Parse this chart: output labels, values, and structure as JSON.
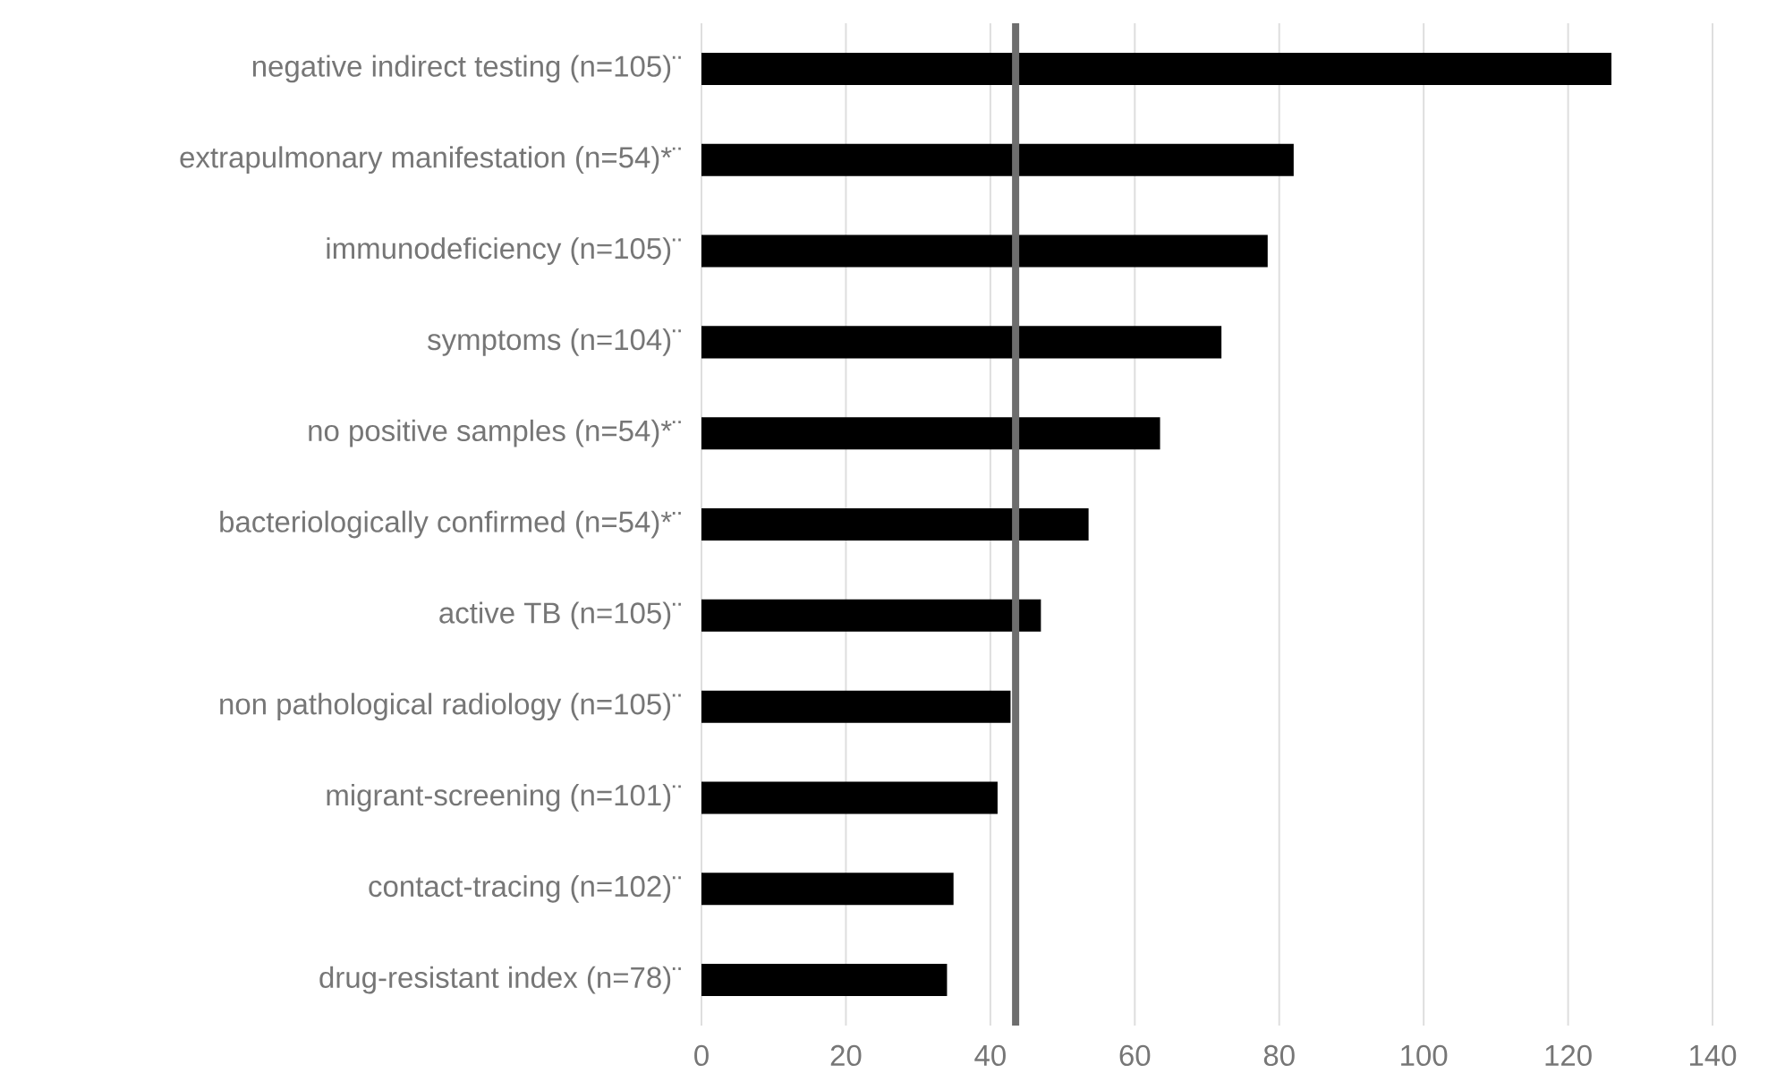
{
  "chart_data": {
    "type": "bar",
    "orientation": "horizontal",
    "categories": [
      "negative indirect testing (n=105)¨",
      "extrapulmonary manifestation (n=54)*¨",
      "immunodeficiency (n=105)¨",
      "symptoms (n=104)¨",
      "no positive samples (n=54)*¨",
      "bacteriologically confirmed (n=54)*¨",
      "active TB (n=105)¨",
      "non pathological radiology (n=105)¨",
      "migrant-screening (n=101)¨",
      "contact-tracing (n=102)¨",
      "drug-resistant index (n=78)¨"
    ],
    "values": [
      126,
      82,
      78.4,
      72,
      63.5,
      53.6,
      47,
      42.8,
      41,
      34.9,
      34
    ],
    "color": "#000000",
    "xlim": [
      0,
      140
    ],
    "xticks": [
      0,
      20,
      40,
      60,
      80,
      100,
      120,
      140
    ],
    "grid": "x",
    "ref_lines": [
      {
        "axis": "x",
        "value": 43.5,
        "color": "#6e6e6e"
      }
    ]
  }
}
